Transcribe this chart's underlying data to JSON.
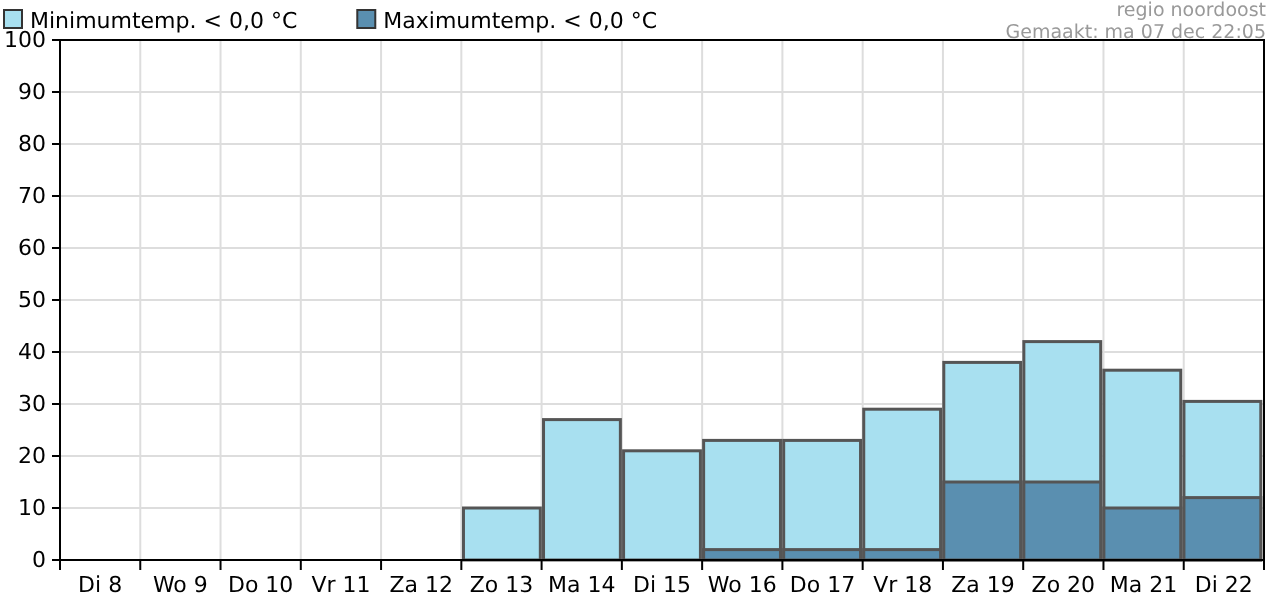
{
  "chart_data": {
    "type": "bar",
    "categories": [
      "Di 8",
      "Wo 9",
      "Do 10",
      "Vr 11",
      "Za 12",
      "Zo 13",
      "Ma 14",
      "Di 15",
      "Wo 16",
      "Do 17",
      "Vr 18",
      "Za 19",
      "Zo 20",
      "Ma 21",
      "Di 22"
    ],
    "series": [
      {
        "name": "Minimumtemp. < 0,0 °C",
        "color": "#a8e0f0",
        "values": [
          0,
          0,
          0,
          0,
          0,
          10,
          27,
          21,
          23,
          23,
          29,
          38,
          42,
          36.5,
          30.5
        ]
      },
      {
        "name": "Maximumtemp. < 0,0 °C",
        "color": "#5a8fb0",
        "values": [
          0,
          0,
          0,
          0,
          0,
          0,
          0,
          0,
          2,
          2,
          2,
          15,
          15,
          10,
          12
        ]
      }
    ],
    "ylim": [
      0,
      100
    ],
    "yticks": [
      0,
      10,
      20,
      30,
      40,
      50,
      60,
      70,
      80,
      90,
      100
    ],
    "grid": true,
    "legend": "top left",
    "annotations": [
      "regio noordoost",
      "Gemaakt: ma 07 dec 22:05"
    ]
  }
}
